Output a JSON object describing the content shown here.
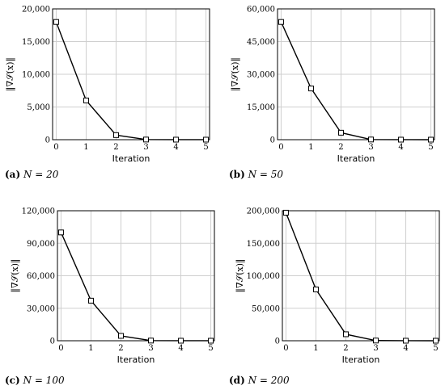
{
  "chart_data": [
    {
      "type": "line",
      "caption_tag": "(a)",
      "caption_eq": "N = 20",
      "xlabel": "Iteration",
      "ylabel": "‖∇𝒮(x)‖",
      "x": [
        0,
        1,
        2,
        3,
        4,
        5
      ],
      "xticks": [
        "0",
        "1",
        "2",
        "3",
        "4",
        "5"
      ],
      "yticks": [
        "0",
        "5,000",
        "10,000",
        "15,000",
        "20,000"
      ],
      "ylim": [
        0,
        20000
      ],
      "grid": true,
      "series": [
        {
          "values": [
            18000,
            6000,
            700,
            20,
            5,
            2
          ]
        }
      ]
    },
    {
      "type": "line",
      "caption_tag": "(b)",
      "caption_eq": "N = 50",
      "xlabel": "Iteration",
      "ylabel": "‖∇𝒮(x)‖",
      "x": [
        0,
        1,
        2,
        3,
        4,
        5
      ],
      "xticks": [
        "0",
        "1",
        "2",
        "3",
        "4",
        "5"
      ],
      "yticks": [
        "0",
        "15,000",
        "30,000",
        "45,000",
        "60,000"
      ],
      "ylim": [
        0,
        60000
      ],
      "grid": true,
      "series": [
        {
          "values": [
            54000,
            23500,
            3200,
            80,
            10,
            5
          ]
        }
      ]
    },
    {
      "type": "line",
      "caption_tag": "(c)",
      "caption_eq": "N = 100",
      "xlabel": "Iteration",
      "ylabel": "‖∇𝒮(x)‖",
      "x": [
        0,
        1,
        2,
        3,
        4,
        5
      ],
      "xticks": [
        "0",
        "1",
        "2",
        "3",
        "4",
        "5"
      ],
      "yticks": [
        "0",
        "30,000",
        "60,000",
        "90,000",
        "120,000"
      ],
      "ylim": [
        0,
        120000
      ],
      "grid": true,
      "series": [
        {
          "values": [
            100000,
            37000,
            4500,
            150,
            20,
            10
          ]
        }
      ]
    },
    {
      "type": "line",
      "caption_tag": "(d)",
      "caption_eq": "N = 200",
      "xlabel": "Iteration",
      "ylabel": "‖∇𝒮(x)‖",
      "x": [
        0,
        1,
        2,
        3,
        4,
        5
      ],
      "xticks": [
        "0",
        "1",
        "2",
        "3",
        "4",
        "5"
      ],
      "yticks": [
        "0",
        "50,000",
        "100,000",
        "150,000",
        "200,000"
      ],
      "ylim": [
        0,
        200000
      ],
      "grid": true,
      "series": [
        {
          "values": [
            197000,
            79000,
            10000,
            300,
            40,
            15
          ]
        }
      ]
    }
  ],
  "colors": {
    "line": "#000000",
    "grid": "#cfcfcf",
    "marker_fill": "#ffffff"
  }
}
